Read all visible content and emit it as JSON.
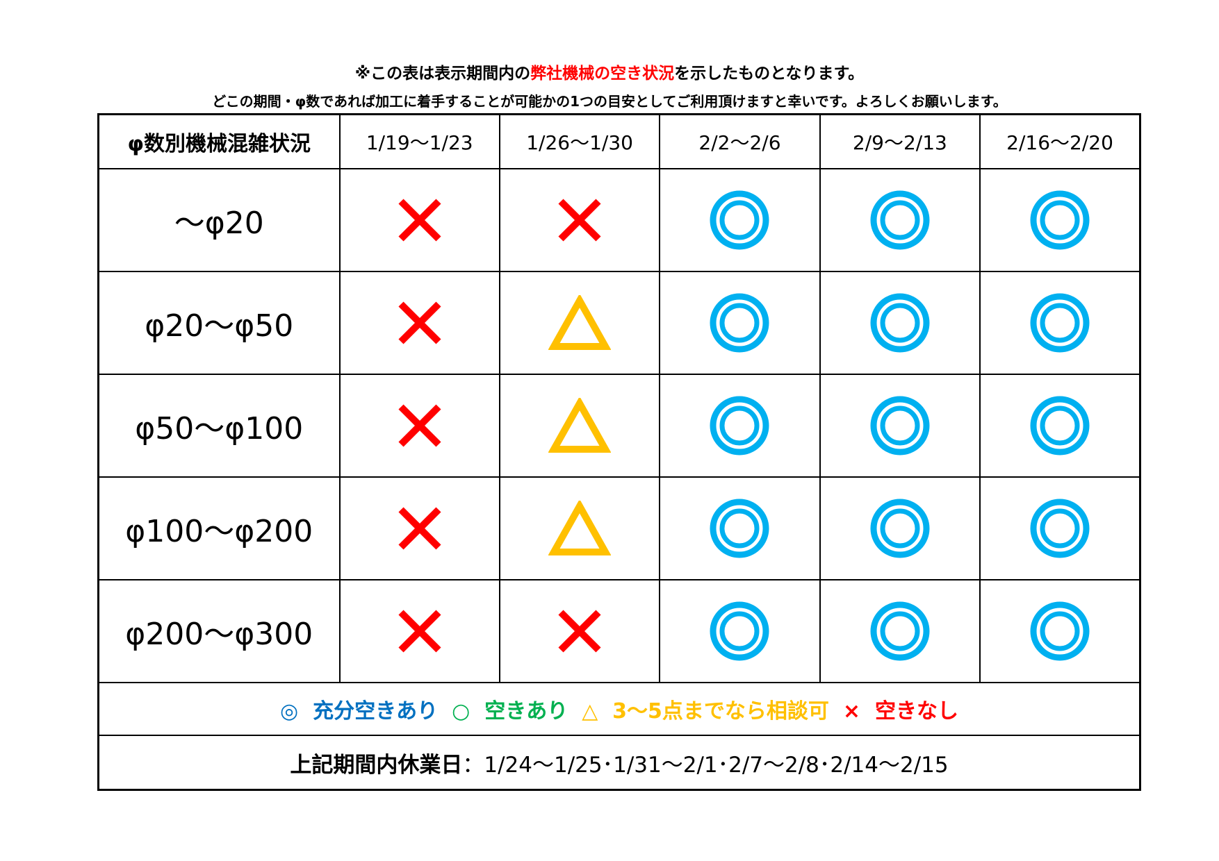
{
  "notes": {
    "line1_prefix": "※この表は表示期間内の",
    "line1_highlight": "弊社機械の空き状況",
    "line1_suffix": "を示したものとなります。",
    "line2": "どこの期間・φ数であれば加工に着手することが可能かの1つの目安としてご利用頂けますと幸いです。よろしくお願いします。"
  },
  "table": {
    "corner_header": "φ数別機械混雑状況",
    "columns": [
      "1/19～1/23",
      "1/26～1/30",
      "2/2～2/6",
      "2/9～2/13",
      "2/16～2/20"
    ],
    "rows": [
      {
        "label": "～φ20",
        "cells": [
          "cross",
          "cross",
          "double-circle",
          "double-circle",
          "double-circle"
        ]
      },
      {
        "label": "φ20～φ50",
        "cells": [
          "cross",
          "triangle",
          "double-circle",
          "double-circle",
          "double-circle"
        ]
      },
      {
        "label": "φ50～φ100",
        "cells": [
          "cross",
          "triangle",
          "double-circle",
          "double-circle",
          "double-circle"
        ]
      },
      {
        "label": "φ100～φ200",
        "cells": [
          "cross",
          "triangle",
          "double-circle",
          "double-circle",
          "double-circle"
        ]
      },
      {
        "label": "φ200～φ300",
        "cells": [
          "cross",
          "cross",
          "double-circle",
          "double-circle",
          "double-circle"
        ]
      }
    ]
  },
  "legend": [
    {
      "symbol": "◎",
      "text": "充分空きあり",
      "color": "#0070c0"
    },
    {
      "symbol": "○",
      "text": "空きあり",
      "color": "#00b050"
    },
    {
      "symbol": "△",
      "text": "3～5点までなら相談可",
      "color": "#ffc000"
    },
    {
      "symbol": "×",
      "text": "空きなし",
      "color": "#ff0000"
    }
  ],
  "holidays": {
    "label": "上記期間内休業日",
    "value": "：1/24～1/25･1/31～2/1･2/7～2/8･2/14～2/15"
  },
  "colors": {
    "cross": "#ff0000",
    "triangle": "#ffc000",
    "double-circle": "#00b0f0"
  }
}
